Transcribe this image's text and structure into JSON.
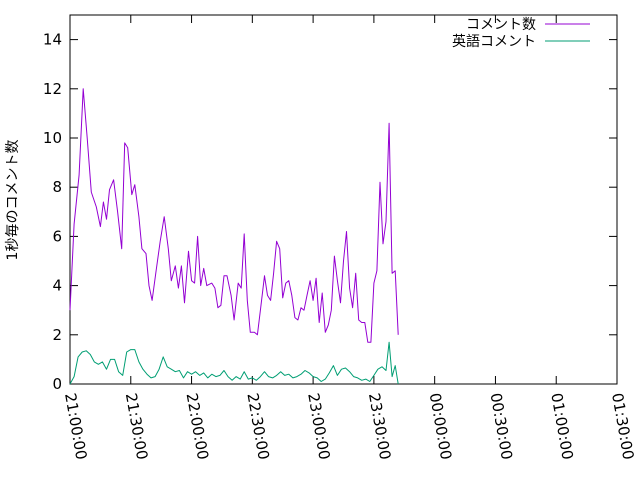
{
  "chart_data": {
    "type": "line",
    "ylabel": "1秒毎のコメント数",
    "xlabel": "",
    "ylim": [
      0,
      15
    ],
    "yticks": [
      "0",
      "2",
      "4",
      "6",
      "8",
      "10",
      "12",
      "14"
    ],
    "xlim": [
      "21:00:00",
      "01:30:00"
    ],
    "xticks": [
      "21:00:00",
      "21:30:00",
      "22:00:00",
      "22:30:00",
      "23:00:00",
      "23:30:00",
      "00:00:00",
      "00:30:00",
      "01:00:00",
      "01:30:00"
    ],
    "grid": false,
    "legend_position": "top-right",
    "series": [
      {
        "name": "コメント数",
        "color": "#9400d3",
        "points": [
          [
            "21:00:00",
            3.0
          ],
          [
            "21:02:00",
            6.5
          ],
          [
            "21:04:30",
            8.5
          ],
          [
            "21:06:30",
            12.0
          ],
          [
            "21:08:30",
            10.0
          ],
          [
            "21:10:30",
            7.8
          ],
          [
            "21:13:00",
            7.2
          ],
          [
            "21:15:00",
            6.4
          ],
          [
            "21:16:30",
            7.4
          ],
          [
            "21:18:00",
            6.7
          ],
          [
            "21:19:30",
            7.9
          ],
          [
            "21:21:30",
            8.3
          ],
          [
            "21:23:30",
            7.0
          ],
          [
            "21:25:30",
            5.5
          ],
          [
            "21:27:00",
            9.8
          ],
          [
            "21:28:30",
            9.6
          ],
          [
            "21:30:30",
            7.7
          ],
          [
            "21:32:00",
            8.1
          ],
          [
            "21:34:00",
            6.8
          ],
          [
            "21:35:30",
            5.5
          ],
          [
            "21:37:30",
            5.3
          ],
          [
            "21:39:00",
            4.0
          ],
          [
            "21:40:30",
            3.4
          ],
          [
            "21:42:30",
            4.6
          ],
          [
            "21:44:30",
            5.8
          ],
          [
            "21:46:30",
            6.8
          ],
          [
            "21:48:30",
            5.5
          ],
          [
            "21:50:00",
            4.2
          ],
          [
            "21:52:00",
            4.8
          ],
          [
            "21:53:30",
            3.9
          ],
          [
            "21:55:00",
            4.8
          ],
          [
            "21:56:30",
            3.3
          ],
          [
            "21:58:30",
            5.4
          ],
          [
            "22:00:00",
            4.2
          ],
          [
            "22:01:30",
            4.1
          ],
          [
            "22:03:00",
            6.0
          ],
          [
            "22:04:30",
            4.0
          ],
          [
            "22:06:00",
            4.7
          ],
          [
            "22:07:30",
            4.0
          ],
          [
            "22:10:00",
            4.1
          ],
          [
            "22:11:30",
            3.9
          ],
          [
            "22:13:00",
            3.1
          ],
          [
            "22:14:30",
            3.2
          ],
          [
            "22:16:00",
            4.4
          ],
          [
            "22:17:30",
            4.4
          ],
          [
            "22:19:30",
            3.6
          ],
          [
            "22:21:00",
            2.6
          ],
          [
            "22:23:00",
            4.1
          ],
          [
            "22:24:30",
            3.9
          ],
          [
            "22:26:00",
            6.1
          ],
          [
            "22:27:30",
            3.4
          ],
          [
            "22:29:00",
            2.1
          ],
          [
            "22:31:00",
            2.1
          ],
          [
            "22:32:30",
            2.0
          ],
          [
            "22:34:00",
            3.0
          ],
          [
            "22:36:00",
            4.4
          ],
          [
            "22:37:30",
            3.6
          ],
          [
            "22:39:00",
            3.4
          ],
          [
            "22:40:30",
            4.5
          ],
          [
            "22:42:00",
            5.8
          ],
          [
            "22:43:30",
            5.5
          ],
          [
            "22:45:00",
            3.5
          ],
          [
            "22:46:30",
            4.1
          ],
          [
            "22:48:00",
            4.2
          ],
          [
            "22:49:30",
            3.6
          ],
          [
            "22:51:00",
            2.7
          ],
          [
            "22:52:30",
            2.6
          ],
          [
            "22:54:00",
            3.1
          ],
          [
            "22:55:30",
            3.0
          ],
          [
            "22:57:00",
            3.6
          ],
          [
            "22:58:30",
            4.2
          ],
          [
            "23:00:00",
            3.4
          ],
          [
            "23:01:30",
            4.3
          ],
          [
            "23:03:00",
            2.5
          ],
          [
            "23:04:30",
            3.7
          ],
          [
            "23:06:00",
            2.1
          ],
          [
            "23:07:30",
            2.4
          ],
          [
            "23:09:00",
            3.0
          ],
          [
            "23:10:30",
            5.2
          ],
          [
            "23:12:00",
            4.2
          ],
          [
            "23:13:30",
            3.3
          ],
          [
            "23:15:00",
            5.0
          ],
          [
            "23:16:30",
            6.2
          ],
          [
            "23:18:00",
            3.9
          ],
          [
            "23:19:30",
            3.1
          ],
          [
            "23:21:00",
            4.5
          ],
          [
            "23:22:30",
            2.6
          ],
          [
            "23:24:00",
            2.5
          ],
          [
            "23:25:30",
            2.5
          ],
          [
            "23:27:00",
            1.7
          ],
          [
            "23:28:30",
            1.7
          ],
          [
            "23:30:00",
            4.1
          ],
          [
            "23:31:30",
            4.6
          ],
          [
            "23:33:00",
            8.2
          ],
          [
            "23:34:30",
            5.7
          ],
          [
            "23:36:00",
            6.6
          ],
          [
            "23:37:30",
            10.6
          ],
          [
            "23:39:00",
            4.5
          ],
          [
            "23:40:30",
            4.6
          ],
          [
            "23:42:00",
            2.0
          ]
        ]
      },
      {
        "name": "英語コメント",
        "color": "#009e73",
        "points": [
          [
            "21:00:00",
            0.0
          ],
          [
            "21:02:00",
            0.3
          ],
          [
            "21:04:00",
            1.1
          ],
          [
            "21:06:00",
            1.3
          ],
          [
            "21:08:00",
            1.35
          ],
          [
            "21:10:00",
            1.2
          ],
          [
            "21:12:00",
            0.9
          ],
          [
            "21:14:00",
            0.8
          ],
          [
            "21:16:00",
            0.9
          ],
          [
            "21:18:00",
            0.6
          ],
          [
            "21:20:00",
            1.0
          ],
          [
            "21:22:00",
            1.0
          ],
          [
            "21:24:00",
            0.5
          ],
          [
            "21:26:00",
            0.35
          ],
          [
            "21:28:00",
            1.3
          ],
          [
            "21:30:00",
            1.4
          ],
          [
            "21:32:00",
            1.4
          ],
          [
            "21:34:00",
            0.9
          ],
          [
            "21:36:00",
            0.6
          ],
          [
            "21:38:00",
            0.4
          ],
          [
            "21:40:00",
            0.25
          ],
          [
            "21:42:00",
            0.3
          ],
          [
            "21:44:00",
            0.6
          ],
          [
            "21:46:00",
            1.1
          ],
          [
            "21:48:00",
            0.7
          ],
          [
            "21:50:00",
            0.6
          ],
          [
            "21:52:00",
            0.5
          ],
          [
            "21:54:00",
            0.55
          ],
          [
            "21:56:00",
            0.25
          ],
          [
            "21:58:00",
            0.5
          ],
          [
            "22:00:00",
            0.4
          ],
          [
            "22:02:00",
            0.5
          ],
          [
            "22:04:00",
            0.35
          ],
          [
            "22:06:00",
            0.45
          ],
          [
            "22:08:00",
            0.25
          ],
          [
            "22:10:00",
            0.4
          ],
          [
            "22:12:00",
            0.3
          ],
          [
            "22:14:00",
            0.35
          ],
          [
            "22:16:00",
            0.55
          ],
          [
            "22:18:00",
            0.3
          ],
          [
            "22:20:00",
            0.15
          ],
          [
            "22:22:00",
            0.3
          ],
          [
            "22:24:00",
            0.2
          ],
          [
            "22:26:00",
            0.5
          ],
          [
            "22:28:00",
            0.2
          ],
          [
            "22:30:00",
            0.25
          ],
          [
            "22:32:00",
            0.15
          ],
          [
            "22:34:00",
            0.3
          ],
          [
            "22:36:00",
            0.5
          ],
          [
            "22:38:00",
            0.3
          ],
          [
            "22:40:00",
            0.25
          ],
          [
            "22:42:00",
            0.35
          ],
          [
            "22:44:00",
            0.5
          ],
          [
            "22:46:00",
            0.35
          ],
          [
            "22:48:00",
            0.4
          ],
          [
            "22:50:00",
            0.25
          ],
          [
            "22:52:00",
            0.3
          ],
          [
            "22:54:00",
            0.4
          ],
          [
            "22:56:00",
            0.55
          ],
          [
            "22:58:00",
            0.45
          ],
          [
            "23:00:00",
            0.3
          ],
          [
            "23:02:00",
            0.25
          ],
          [
            "23:04:00",
            0.1
          ],
          [
            "23:06:00",
            0.2
          ],
          [
            "23:08:00",
            0.45
          ],
          [
            "23:10:00",
            0.75
          ],
          [
            "23:12:00",
            0.35
          ],
          [
            "23:14:00",
            0.6
          ],
          [
            "23:16:00",
            0.65
          ],
          [
            "23:18:00",
            0.5
          ],
          [
            "23:20:00",
            0.3
          ],
          [
            "23:22:00",
            0.25
          ],
          [
            "23:24:00",
            0.15
          ],
          [
            "23:26:00",
            0.2
          ],
          [
            "23:28:00",
            0.1
          ],
          [
            "23:30:00",
            0.35
          ],
          [
            "23:32:00",
            0.6
          ],
          [
            "23:34:00",
            0.7
          ],
          [
            "23:36:00",
            0.55
          ],
          [
            "23:37:30",
            1.7
          ],
          [
            "23:39:00",
            0.3
          ],
          [
            "23:40:30",
            0.75
          ],
          [
            "23:42:00",
            0.0
          ]
        ]
      }
    ]
  }
}
